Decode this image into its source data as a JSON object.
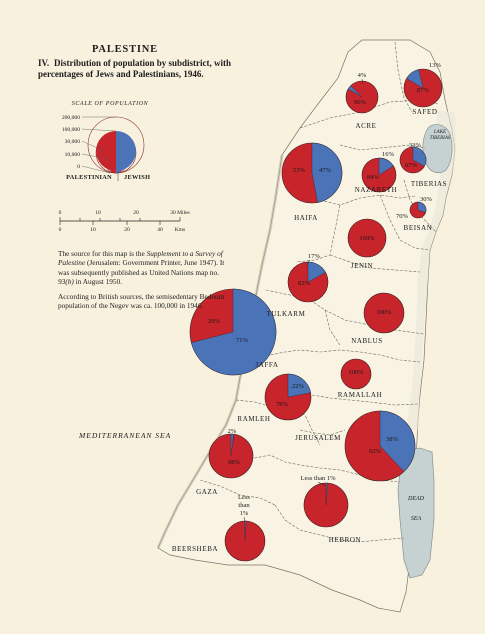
{
  "title": "PALESTINE",
  "subtitle_num": "IV.",
  "subtitle_text": "Distribution of population by subdistrict, with percentages of Jews and Palestinians, 1946.",
  "legend": {
    "scale_title": "SCALE OF POPULATION",
    "scale_values": [
      "200,000",
      "100,000",
      "30,000",
      "10,000",
      "0"
    ],
    "palestinian_label": "PALESTINIAN",
    "jewish_label": "JEWISH"
  },
  "scalebar": {
    "ticks": [
      "0",
      "10",
      "20",
      "30",
      "40"
    ],
    "miles_label": "30 Miles",
    "km_label": "Kms"
  },
  "notes": {
    "p1_a": "The source for this map is the ",
    "p1_b": "Supplement to a Survey of Palestine",
    "p1_c": " (Jerusalem: Government Printer, June 1947). It was subsequently published as United Nations map no. ",
    "p1_d": "93(b)",
    "p1_e": " in August 1950.",
    "p2": "According to British sources, the semisedentary Bedouin population of the Negev was ca. 100,000 in 1946."
  },
  "colors": {
    "palestinian": "#c8242b",
    "jewish": "#4a74b7",
    "land": "#f8f3e3",
    "sea": "#c9d3c8",
    "lake": "#c6d2d2"
  },
  "water_labels": {
    "sea": "MEDITERRANEAN SEA",
    "lake_line1": "LAKE",
    "lake_line2": "TIBERIAS",
    "dead_line1": "DEAD",
    "dead_line2": "SEA"
  },
  "subdistricts": [
    {
      "name": "ACRE",
      "jewish_pct": 4,
      "palestinian_pct": 96,
      "jewish_label": "4%",
      "palestinian_label": "96%"
    },
    {
      "name": "SAFED",
      "jewish_pct": 13,
      "palestinian_pct": 87,
      "jewish_label": "13%",
      "palestinian_label": "87%"
    },
    {
      "name": "HAIFA",
      "jewish_pct": 47,
      "palestinian_pct": 53,
      "jewish_label": "47%",
      "palestinian_label": "53%"
    },
    {
      "name": "NAZARETH",
      "jewish_pct": 16,
      "palestinian_pct": 84,
      "jewish_label": "16%",
      "palestinian_label": "84%"
    },
    {
      "name": "TIBERIAS",
      "jewish_pct": 33,
      "palestinian_pct": 67,
      "jewish_label": "33%",
      "palestinian_label": "67%"
    },
    {
      "name": "BEISAN",
      "jewish_pct": 30,
      "palestinian_pct": 70,
      "jewish_label": "30%",
      "palestinian_label": "70%"
    },
    {
      "name": "JENIN",
      "jewish_pct": 0,
      "palestinian_pct": 100,
      "palestinian_label": "100%"
    },
    {
      "name": "TULKARM",
      "jewish_pct": 17,
      "palestinian_pct": 83,
      "jewish_label": "17%",
      "palestinian_label": "83%"
    },
    {
      "name": "NABLUS",
      "jewish_pct": 0,
      "palestinian_pct": 100,
      "palestinian_label": "100%"
    },
    {
      "name": "JAFFA",
      "jewish_pct": 71,
      "palestinian_pct": 29,
      "jewish_label": "71%",
      "palestinian_label": "29%"
    },
    {
      "name": "RAMALLAH",
      "jewish_pct": 0,
      "palestinian_pct": 100,
      "palestinian_label": "100%"
    },
    {
      "name": "RAMLEH",
      "jewish_pct": 22,
      "palestinian_pct": 78,
      "jewish_label": "22%",
      "palestinian_label": "78%"
    },
    {
      "name": "JERUSALEM",
      "jewish_pct": 38,
      "palestinian_pct": 62,
      "jewish_label": "38%",
      "palestinian_label": "62%"
    },
    {
      "name": "GAZA",
      "jewish_pct": 2,
      "palestinian_pct": 98,
      "jewish_label": "2%",
      "palestinian_label": "98%"
    },
    {
      "name": "HEBRON",
      "jewish_pct": 1,
      "palestinian_pct": 99,
      "jewish_label": "Less than 1%"
    },
    {
      "name": "BEERSHEBA",
      "jewish_pct": 1,
      "palestinian_pct": 99,
      "jewish_label_lines": [
        "Less",
        "than",
        "1%"
      ]
    }
  ]
}
